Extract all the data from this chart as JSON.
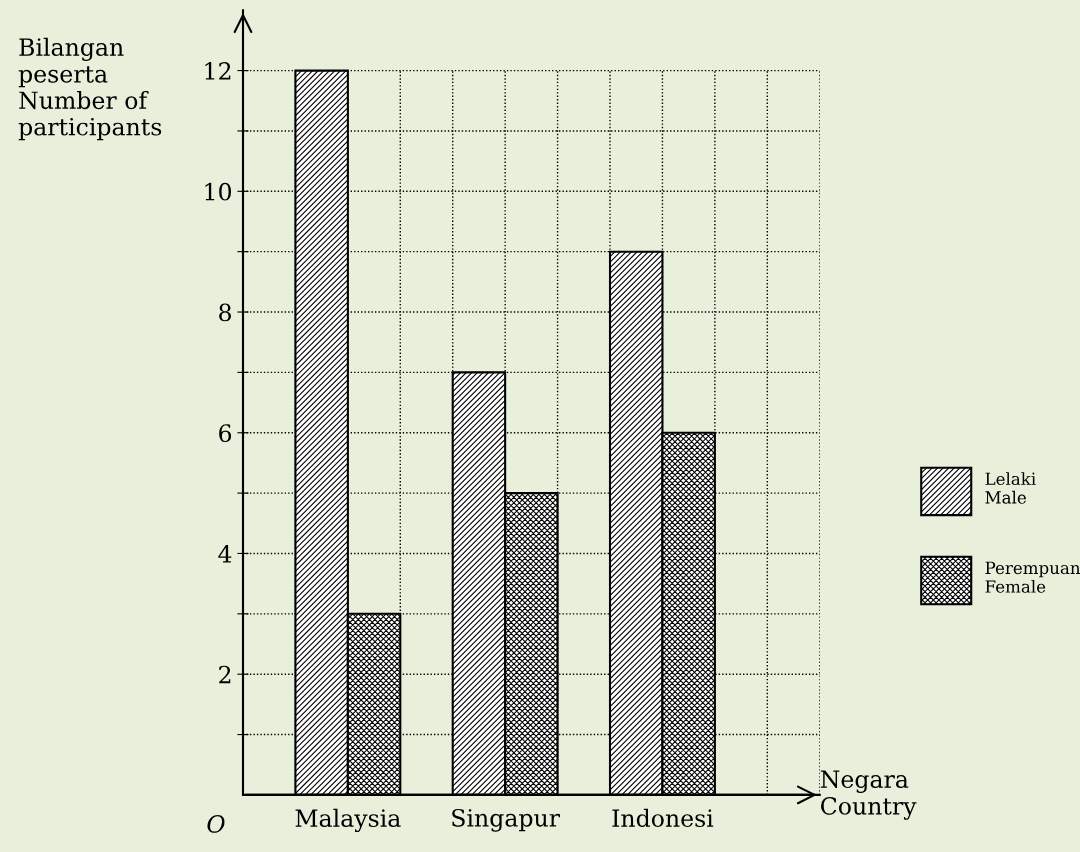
{
  "chart_data": {
    "type": "bar",
    "xlabel": "Negara\nCountry",
    "ylabel": "Bilangan\npeserta\nNumber of\nparticipants",
    "categories": [
      "Malaysia",
      "Singapur",
      "Indonesi"
    ],
    "series": [
      {
        "name": "Lelaki\nMale",
        "color": "#000000",
        "values": [
          12,
          7,
          9
        ]
      },
      {
        "name": "Perempuan\nFemale",
        "color": "#000000",
        "values": [
          3,
          5,
          6
        ]
      }
    ],
    "ylim": [
      0,
      13
    ],
    "yticks": [
      {
        "value": 1,
        "label": null
      },
      2,
      {
        "value": 3,
        "label": null
      },
      4,
      {
        "value": 5,
        "label": null
      },
      6,
      {
        "value": 7,
        "label": null
      },
      8,
      {
        "value": 9,
        "label": null
      },
      10,
      {
        "value": 11,
        "label": null
      },
      12
    ],
    "annotations": [
      "O"
    ],
    "grid": true,
    "legend": "right"
  }
}
